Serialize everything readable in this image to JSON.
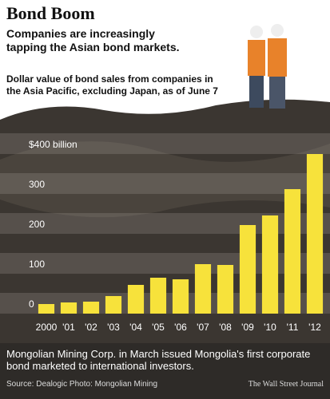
{
  "chart_data": {
    "type": "bar",
    "title": "Bond Boom",
    "subtitle": "Companies are increasingly tapping the Asian bond markets.",
    "description": "Dollar value of bond sales from companies in the Asia Pacific, excluding Japan, as of June 7",
    "categories": [
      "2000",
      "'01",
      "'02",
      "'03",
      "'04",
      "'05",
      "'06",
      "'07",
      "'08",
      "'09",
      "'10",
      "'11",
      "'12"
    ],
    "values": [
      24,
      28,
      30,
      44,
      72,
      90,
      86,
      124,
      122,
      222,
      246,
      312,
      400
    ],
    "color": "#f7e23b",
    "ylim": [
      0,
      400
    ],
    "yticks": [
      0,
      100,
      200,
      300,
      {
        "value": 400,
        "label": "$400 billion"
      }
    ],
    "grid": true,
    "caption": "Mongolian Mining Corp. in March issued Mongolia's first corporate bond marketed to international investors.",
    "source": "Source: Dealogic  Photo: Mongolian Mining",
    "publisher": "The Wall Street Journal"
  }
}
